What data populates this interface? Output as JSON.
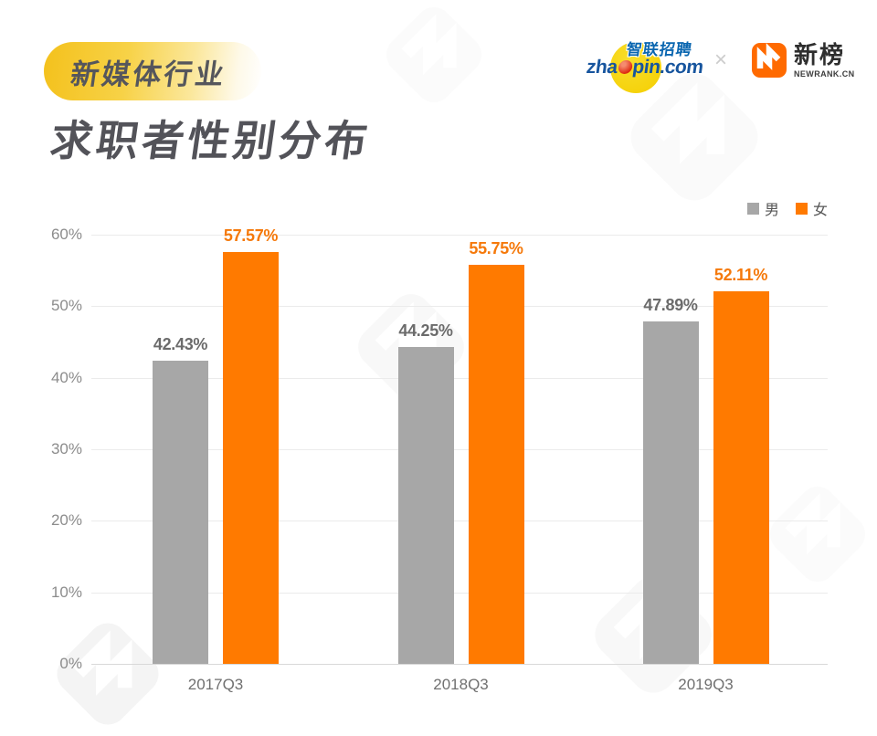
{
  "header": {
    "badge": "新媒体行业",
    "title": "求职者性别分布",
    "logos": {
      "zhaopin_cn": "智联招聘",
      "zhaopin_en_left": "zha",
      "zhaopin_en_right": "pin.com",
      "separator": "×",
      "newrank_cn": "新榜",
      "newrank_en": "NEWRANK.CN"
    }
  },
  "colors": {
    "male_bar": "#A7A7A7",
    "female_bar": "#FF7A00",
    "male_label": "#6B6B6B",
    "female_label": "#F5790B",
    "grid": "#EBEBEB",
    "axis_line": "#D9D9D9",
    "badge_yellow": "#F4C11C",
    "newrank_orange": "#FF6A00",
    "zhaopin_blue": "#17559E",
    "zhaopin_yellow": "#F4CE00"
  },
  "chart_data": {
    "type": "bar",
    "title": "求职者性别分布",
    "categories": [
      "2017Q3",
      "2018Q3",
      "2019Q3"
    ],
    "series": [
      {
        "name": "男",
        "color": "#A7A7A7",
        "label_color": "#6B6B6B",
        "values": [
          42.43,
          44.25,
          47.89
        ]
      },
      {
        "name": "女",
        "color": "#FF7A00",
        "label_color": "#F5790B",
        "values": [
          57.57,
          55.75,
          52.11
        ]
      }
    ],
    "value_suffix": "%",
    "ylim": [
      0,
      60
    ],
    "ytick_step": 10,
    "ytick_labels": [
      "0%",
      "10%",
      "20%",
      "30%",
      "40%",
      "50%",
      "60%"
    ],
    "grid": true,
    "legend_position": "top-right",
    "xlabel": "",
    "ylabel": ""
  }
}
